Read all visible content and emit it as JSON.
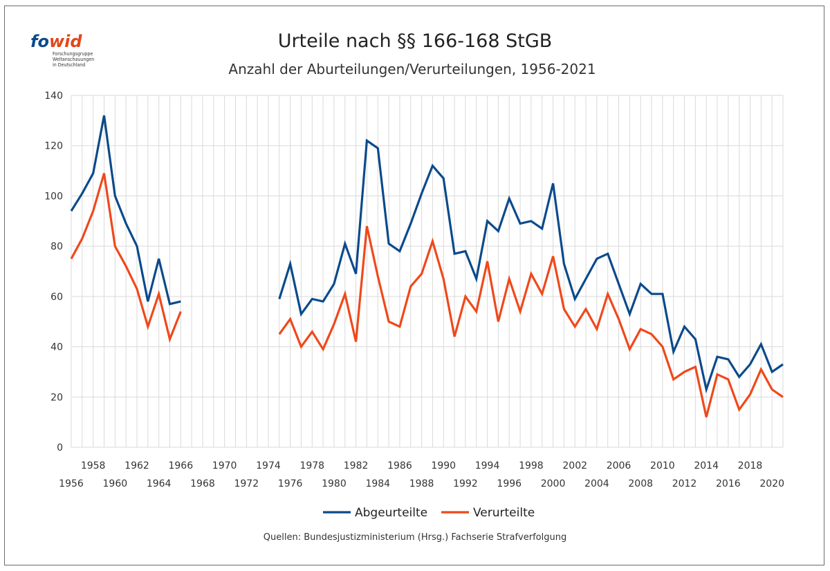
{
  "logo": {
    "brand_left": "fo",
    "brand_right": "wid",
    "line1": "Forschungsgruppe",
    "line2": "Weltanschauungen",
    "line3": "in Deutschland"
  },
  "source": "Quellen: Bundesjustizministerium (Hrsg.) Fachserie Strafverfolgung",
  "colors": {
    "abgeurteilte": "#0b4a8b",
    "verurteilte": "#f0481a",
    "grid": "#d9d9d9"
  },
  "chart_data": {
    "type": "line",
    "title": "Urteile nach §§ 166-168 StGB",
    "subtitle": "Anzahl der Aburteilungen/Verurteilungen, 1956-2021",
    "ylim": [
      0,
      140
    ],
    "yticks": [
      0,
      20,
      40,
      60,
      80,
      100,
      120,
      140
    ],
    "xlim": [
      1956,
      2021
    ],
    "xticks_upper": [
      1958,
      1962,
      1966,
      1970,
      1974,
      1978,
      1982,
      1986,
      1990,
      1994,
      1998,
      2002,
      2006,
      2010,
      2014,
      2018
    ],
    "xticks_lower": [
      1956,
      1960,
      1964,
      1968,
      1972,
      1976,
      1980,
      1984,
      1988,
      1992,
      1996,
      2000,
      2004,
      2008,
      2012,
      2016,
      2020
    ],
    "grid": true,
    "legend_position": "bottom",
    "x": [
      1956,
      1957,
      1958,
      1959,
      1960,
      1961,
      1962,
      1963,
      1964,
      1965,
      1966,
      1967,
      1968,
      1969,
      1970,
      1971,
      1972,
      1973,
      1974,
      1975,
      1976,
      1977,
      1978,
      1979,
      1980,
      1981,
      1982,
      1983,
      1984,
      1985,
      1986,
      1987,
      1988,
      1989,
      1990,
      1991,
      1992,
      1993,
      1994,
      1995,
      1996,
      1997,
      1998,
      1999,
      2000,
      2001,
      2002,
      2003,
      2004,
      2005,
      2006,
      2007,
      2008,
      2009,
      2010,
      2011,
      2012,
      2013,
      2014,
      2015,
      2016,
      2017,
      2018,
      2019,
      2020,
      2021
    ],
    "series": [
      {
        "name": "Abgeurteilte",
        "values": [
          94,
          101,
          109,
          132,
          100,
          89,
          80,
          58,
          75,
          57,
          58,
          null,
          null,
          null,
          null,
          null,
          null,
          null,
          null,
          59,
          73,
          53,
          59,
          58,
          65,
          81,
          69,
          122,
          119,
          81,
          78,
          89,
          101,
          112,
          107,
          77,
          78,
          67,
          90,
          86,
          99,
          89,
          90,
          87,
          105,
          73,
          59,
          67,
          75,
          77,
          65,
          53,
          65,
          61,
          61,
          38,
          48,
          43,
          23,
          36,
          35,
          28,
          33,
          41,
          30,
          33
        ]
      },
      {
        "name": "Verurteilte",
        "values": [
          75,
          83,
          94,
          109,
          80,
          72,
          63,
          48,
          61,
          43,
          54,
          null,
          null,
          null,
          null,
          null,
          null,
          null,
          null,
          45,
          51,
          40,
          46,
          39,
          49,
          61,
          42,
          88,
          68,
          50,
          48,
          64,
          69,
          82,
          67,
          44,
          60,
          54,
          74,
          50,
          67,
          54,
          69,
          61,
          76,
          55,
          48,
          55,
          47,
          61,
          51,
          39,
          47,
          45,
          40,
          27,
          30,
          32,
          12,
          29,
          27,
          15,
          21,
          31,
          23,
          20
        ]
      }
    ]
  }
}
